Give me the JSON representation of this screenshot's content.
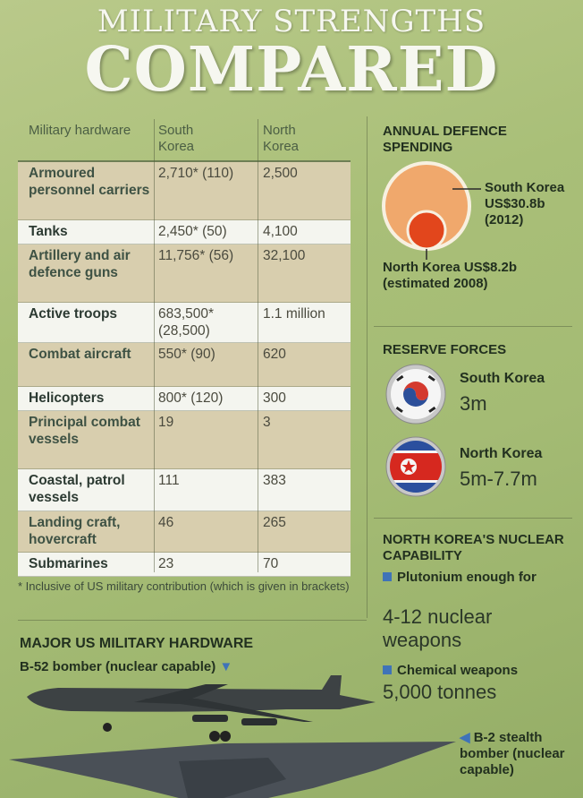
{
  "title": {
    "line1": "MILITARY STRENGTHS",
    "line2": "COMPARED"
  },
  "table": {
    "headers": [
      "Military hardware",
      "South Korea",
      "North Korea"
    ],
    "rows": [
      {
        "item": "Armoured personnel carriers",
        "south": "2,710* (110)",
        "north": "2,500"
      },
      {
        "item": "Tanks",
        "south": "2,450* (50)",
        "north": "4,100"
      },
      {
        "item": "Artillery and air defence guns",
        "south": "11,756* (56)",
        "north": "32,100"
      },
      {
        "item": "Active troops",
        "south": "683,500* (28,500)",
        "north": "1.1 million"
      },
      {
        "item": "Combat aircraft",
        "south": "550* (90)",
        "north": "620"
      },
      {
        "item": "Helicopters",
        "south": "800* (120)",
        "north": "300"
      },
      {
        "item": "Principal combat vessels",
        "south": "19",
        "north": "3"
      },
      {
        "item": "Coastal, patrol vessels",
        "south": "111",
        "north": "383"
      },
      {
        "item": "Landing craft, hovercraft",
        "south": "46",
        "north": "265"
      },
      {
        "item": "Submarines",
        "south": "23",
        "north": "70"
      }
    ],
    "footnote": "* Inclusive of US military contribution (which is given in brackets)"
  },
  "spending": {
    "title": "ANNUAL DEFENCE SPENDING",
    "south_label": "South Korea US$30.8b (2012)",
    "north_label": "North Korea US$8.2b (estimated 2008)",
    "south_value_billion": 30.8,
    "north_value_billion": 8.2,
    "south_color": "#f0a86c",
    "north_color": "#e2461c"
  },
  "reserve": {
    "title": "RESERVE FORCES",
    "south_name": "South Korea",
    "south_value": "3m",
    "north_name": "North Korea",
    "north_value": "5m-7.7m"
  },
  "nuclear": {
    "title": "NORTH KOREA'S NUCLEAR CAPABILITY",
    "item1_label": "Plutonium enough for",
    "item1_value": "4-12 nuclear weapons",
    "item2_label": "Chemical weapons",
    "item2_value": "5,000 tonnes"
  },
  "us_hardware": {
    "title": "MAJOR US MILITARY HARDWARE",
    "b52_label": "B-52 bomber (nuclear capable)",
    "b2_label": "B-2 stealth bomber (nuclear capable)"
  },
  "colors": {
    "background": "#a9bf78",
    "accent_blue": "#3f73b8",
    "title_white": "#f6f7f0"
  }
}
